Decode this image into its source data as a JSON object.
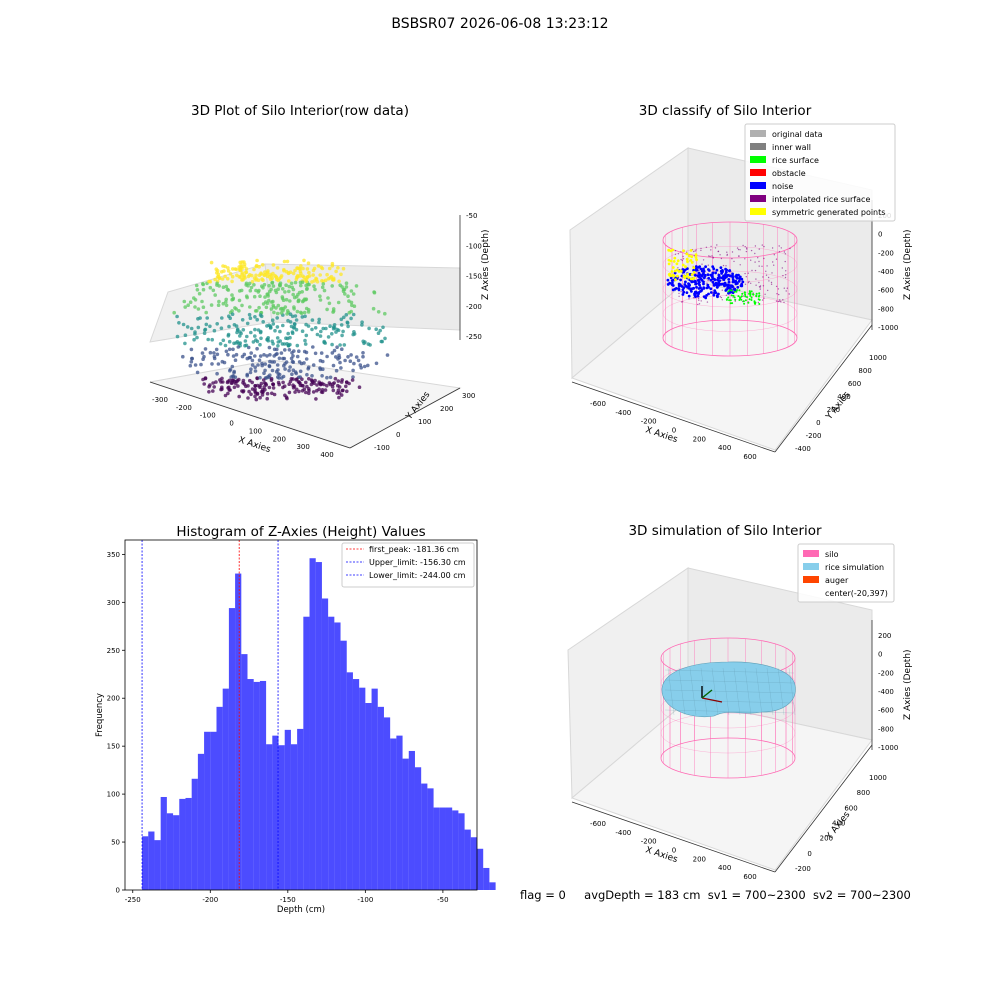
{
  "suptitle": "BSBSR07 2026-06-08 13:23:12",
  "panel_raw": {
    "title": "3D Plot of Silo Interior(row data)",
    "xlabel": "X Axies",
    "ylabel": "Y Axies",
    "zlabel": "Z Axies (Depth)",
    "xticks": [
      "-300",
      "-200",
      "-100",
      "0",
      "100",
      "200",
      "300",
      "400"
    ],
    "yticks": [
      "-100",
      "0",
      "100",
      "200",
      "300"
    ],
    "zticks": [
      "-50",
      "-100",
      "-150",
      "-200",
      "-250"
    ],
    "colormap": [
      "#440154",
      "#3b528b",
      "#21918c",
      "#5ec962",
      "#fde725"
    ]
  },
  "panel_classify": {
    "title": "3D classify of Silo Interior",
    "xlabel": "X Axies",
    "ylabel": "Y Axies",
    "zlabel": "Z Axies (Depth)",
    "xticks": [
      "-600",
      "-400",
      "-200",
      "0",
      "200",
      "400",
      "600"
    ],
    "yticks": [
      "-400",
      "-200",
      "0",
      "200",
      "400",
      "600",
      "800",
      "1000"
    ],
    "zticks": [
      "200",
      "0",
      "-200",
      "-400",
      "-600",
      "-800",
      "-1000"
    ],
    "legend": [
      {
        "label": "original data",
        "color": "#b0b0b0"
      },
      {
        "label": "inner wall",
        "color": "#808080"
      },
      {
        "label": "rice surface",
        "color": "#00ff00"
      },
      {
        "label": "obstacle",
        "color": "#ff0000"
      },
      {
        "label": "noise",
        "color": "#0000ff"
      },
      {
        "label": "interpolated rice surface",
        "color": "#800080"
      },
      {
        "label": "symmetric generated points",
        "color": "#ffff00"
      }
    ]
  },
  "panel_sim": {
    "title": "3D simulation of Silo Interior",
    "xlabel": "X Axies",
    "ylabel": "Y Axies",
    "zlabel": "Z Axies (Depth)",
    "xticks": [
      "-600",
      "-400",
      "-200",
      "0",
      "200",
      "400",
      "600"
    ],
    "yticks": [
      "-200",
      "0",
      "200",
      "400",
      "600",
      "800",
      "1000"
    ],
    "zticks": [
      "200",
      "0",
      "-200",
      "-400",
      "-600",
      "-800",
      "-1000"
    ],
    "legend": [
      {
        "label": "silo",
        "color": "#ff69b4"
      },
      {
        "label": "rice simulation",
        "color": "#87ceeb"
      },
      {
        "label": "auger",
        "color": "#ff4500"
      },
      {
        "label": "center(-20,397)",
        "color": ""
      }
    ]
  },
  "chart_data": {
    "type": "bar",
    "title": "Histogram of Z-Axies (Height) Values",
    "xlabel": "Depth (cm)",
    "ylabel": "Frequency",
    "xlim": [
      -255,
      -28
    ],
    "ylim": [
      0,
      365
    ],
    "xticks": [
      -250,
      -200,
      -150,
      -100,
      -50
    ],
    "yticks": [
      0,
      50,
      100,
      150,
      200,
      250,
      300,
      350
    ],
    "bin_start": -244.0,
    "bin_width": 4.0,
    "values": [
      56,
      61,
      52,
      97,
      80,
      78,
      95,
      96,
      116,
      142,
      165,
      165,
      191,
      210,
      294,
      330,
      246,
      220,
      217,
      218,
      152,
      161,
      151,
      167,
      152,
      168,
      285,
      346,
      342,
      304,
      285,
      279,
      260,
      227,
      220,
      211,
      195,
      210,
      191,
      180,
      158,
      161,
      137,
      145,
      128,
      111,
      106,
      86,
      86,
      86,
      83,
      80,
      63,
      55,
      43,
      23,
      8
    ],
    "bar_color": "#0000ff",
    "lines": [
      {
        "label": "first_peak: -181.36 cm",
        "x": -181.36,
        "color": "#ff0000"
      },
      {
        "label": "Upper_limit: -156.30 cm",
        "x": -156.3,
        "color": "#0000ff"
      },
      {
        "label": "Lower_limit: -244.00 cm",
        "x": -244.0,
        "color": "#0000ff"
      }
    ],
    "legend_position": "top-right"
  },
  "footer": {
    "flag": "flag = 0",
    "avg": "avgDepth = 183 cm",
    "sv1": "sv1 = 700~2300",
    "sv2": "sv2 = 700~2300"
  }
}
